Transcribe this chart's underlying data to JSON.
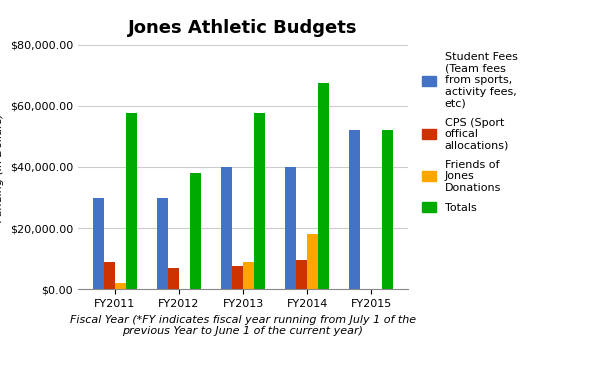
{
  "title": "Jones Athletic Budgets",
  "xlabel": "Fiscal Year (*FY indicates fiscal year running from July 1 of the\nprevious Year to June 1 of the current year)",
  "categories": [
    "FY2011",
    "FY2012",
    "FY2013",
    "FY2014",
    "FY2015"
  ],
  "series_names": [
    "Student Fees\n(Team fees\nfrom sports,\nactivity fees,\netc)",
    "CPS (Sport\noffical\nallocations)",
    "Friends of\nJones\nDonations",
    "Totals"
  ],
  "series_values": [
    [
      30000,
      30000,
      40000,
      40000,
      52000
    ],
    [
      9000,
      7000,
      7500,
      9500,
      0
    ],
    [
      2000,
      0,
      9000,
      18000,
      0
    ],
    [
      57500,
      38000,
      57500,
      67500,
      52000
    ]
  ],
  "colors": [
    "#4472C4",
    "#CC3300",
    "#FFA500",
    "#00AA00"
  ],
  "ylim": [
    0,
    80000
  ],
  "yticks": [
    0,
    20000,
    40000,
    60000,
    80000
  ],
  "bar_width": 0.17,
  "legend_fontsize": 8,
  "title_fontsize": 13,
  "axis_label_fontsize": 8,
  "tick_fontsize": 8,
  "xlabel_fontsize": 8
}
